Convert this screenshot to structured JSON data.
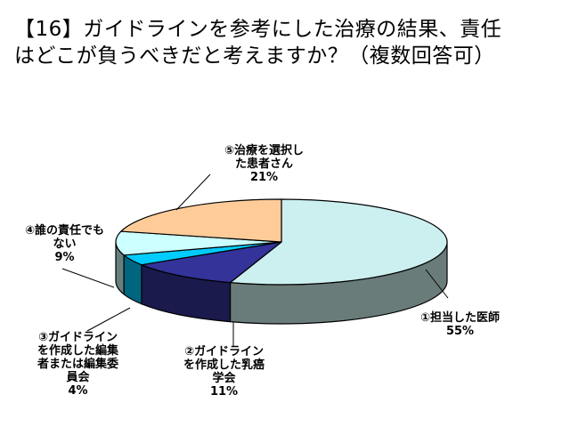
{
  "title": {
    "line1": "【16】ガイドラインを参考にした治療の結果、責任",
    "line2": "はどこが負うべきだと考えますか？（複数回答可）"
  },
  "chart_data": {
    "type": "pie",
    "three_d": true,
    "legend": "none",
    "title": "【16】ガイドラインを参考にした治療の結果、責任はどこが負うべきだと考えますか？（複数回答可）",
    "slices": [
      {
        "name": "①担当した医師",
        "label_lines": [
          "①担当した医師"
        ],
        "value": 55,
        "value_label": "55%",
        "top_color": "#cceff0",
        "side_color": "#6a7c7a"
      },
      {
        "name": "②ガイドラインを作成した乳癌学会",
        "label_lines": [
          "②ガイドライン",
          "を作成した乳癌",
          "学会"
        ],
        "value": 11,
        "value_label": "11%",
        "top_color": "#33339a",
        "side_color": "#1a1a4d"
      },
      {
        "name": "③ガイドラインを作成した編集者または編集委員会",
        "label_lines": [
          "③ガイドライン",
          "を作成した編集",
          "者または編集委",
          "員会"
        ],
        "value": 4,
        "value_label": "4%",
        "top_color": "#00ccff",
        "side_color": "#006680"
      },
      {
        "name": "④誰の責任でもない",
        "label_lines": [
          "④誰の責任でも",
          "ない"
        ],
        "value": 9,
        "value_label": "9%",
        "top_color": "#ccffff",
        "side_color": "#668080"
      },
      {
        "name": "⑤治療を選択した患者さん",
        "label_lines": [
          "⑤治療を選択し",
          "た患者さん"
        ],
        "value": 21,
        "value_label": "21%",
        "top_color": "#ffcc99",
        "side_color": "#80664d"
      }
    ]
  }
}
